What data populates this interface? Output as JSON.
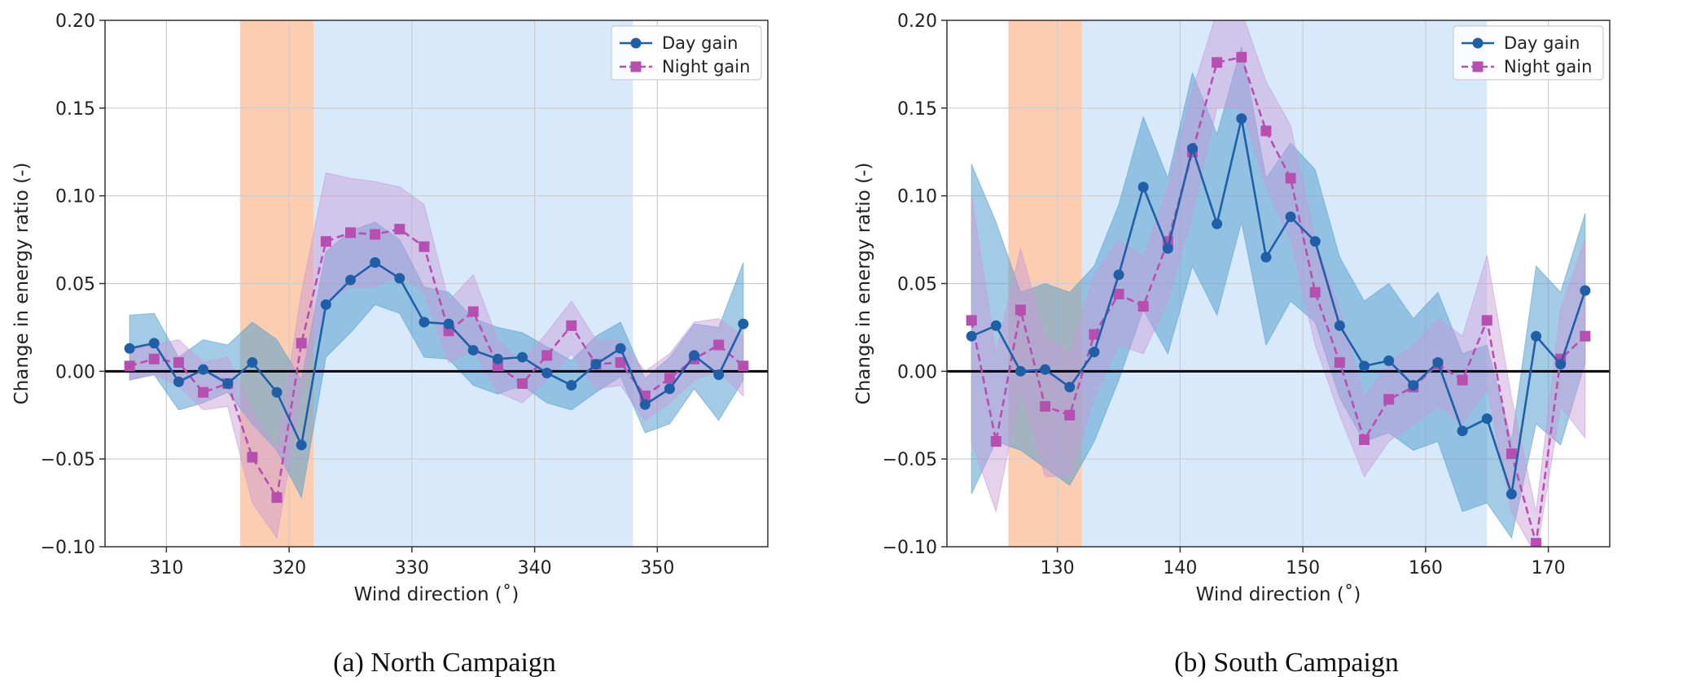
{
  "colors": {
    "day": "#1f5fa8",
    "night": "#b64fb0",
    "day_band": "#5aa0d0",
    "night_band": "#c79ad6",
    "shade_orange": "#fccdb0",
    "shade_blue": "#d7e9fb",
    "grid": "#cccccc",
    "zero_line": "#000000"
  },
  "chart_data": [
    {
      "type": "line",
      "caption": "(a) North Campaign",
      "xlabel": "Wind direction (˚)",
      "ylabel": "Change in energy ratio (-)",
      "xlim": [
        305,
        359
      ],
      "ylim": [
        -0.1,
        0.2
      ],
      "xticks": [
        310,
        320,
        330,
        340,
        350
      ],
      "xtick_labels": [
        "310",
        "320",
        "330",
        "340",
        "350"
      ],
      "yticks": [
        -0.1,
        -0.05,
        0.0,
        0.05,
        0.1,
        0.15,
        0.2
      ],
      "ytick_labels": [
        "−0.10",
        "−0.05",
        "0.00",
        "0.05",
        "0.10",
        "0.15",
        "0.20"
      ],
      "shaded_regions": [
        {
          "from": 316,
          "to": 322,
          "color": "shade_orange"
        },
        {
          "from": 322,
          "to": 348,
          "color": "shade_blue"
        }
      ],
      "legend": [
        "Day gain",
        "Night gain"
      ],
      "x": [
        307,
        309,
        311,
        313,
        315,
        317,
        319,
        321,
        323,
        325,
        327,
        329,
        331,
        333,
        335,
        337,
        339,
        341,
        343,
        345,
        347,
        349,
        351,
        353,
        355,
        357
      ],
      "series": [
        {
          "name": "Day gain",
          "marker": "circle",
          "values": [
            0.013,
            0.016,
            -0.006,
            0.001,
            -0.007,
            0.005,
            -0.012,
            -0.042,
            0.038,
            0.052,
            0.062,
            0.053,
            0.028,
            0.027,
            0.012,
            0.007,
            0.008,
            -0.001,
            -0.008,
            0.004,
            0.013,
            -0.019,
            -0.01,
            0.009,
            -0.002,
            0.027
          ],
          "lower": [
            -0.005,
            -0.002,
            -0.022,
            -0.018,
            -0.012,
            -0.03,
            -0.045,
            -0.072,
            0.008,
            0.022,
            0.038,
            0.033,
            0.008,
            0.007,
            -0.008,
            -0.013,
            -0.008,
            -0.018,
            -0.022,
            -0.012,
            -0.003,
            -0.035,
            -0.03,
            -0.01,
            -0.028,
            -0.005
          ],
          "upper": [
            0.032,
            0.033,
            0.008,
            0.018,
            0.015,
            0.028,
            0.018,
            -0.005,
            0.068,
            0.08,
            0.085,
            0.075,
            0.048,
            0.045,
            0.03,
            0.025,
            0.022,
            0.014,
            0.006,
            0.02,
            0.028,
            -0.004,
            0.008,
            0.027,
            0.025,
            0.062
          ]
        },
        {
          "name": "Night gain",
          "marker": "square",
          "values": [
            0.003,
            0.007,
            0.005,
            -0.012,
            -0.007,
            -0.049,
            -0.072,
            0.016,
            0.074,
            0.079,
            0.078,
            0.081,
            0.071,
            0.023,
            0.034,
            0.003,
            -0.007,
            0.009,
            0.026,
            0.004,
            0.005,
            -0.014,
            -0.004,
            0.007,
            0.015,
            0.003
          ],
          "lower": [
            -0.005,
            -0.002,
            -0.008,
            -0.022,
            -0.02,
            -0.075,
            -0.095,
            -0.012,
            0.04,
            0.048,
            0.048,
            0.055,
            0.045,
            0.005,
            0.012,
            -0.012,
            -0.018,
            -0.005,
            0.01,
            -0.01,
            -0.008,
            -0.028,
            -0.018,
            -0.005,
            0.0,
            -0.014
          ],
          "upper": [
            0.012,
            0.015,
            0.018,
            0.005,
            0.008,
            -0.022,
            -0.045,
            0.045,
            0.113,
            0.11,
            0.108,
            0.105,
            0.095,
            0.04,
            0.055,
            0.018,
            0.005,
            0.022,
            0.04,
            0.018,
            0.018,
            0.0,
            0.01,
            0.028,
            0.03,
            0.02
          ]
        }
      ]
    },
    {
      "type": "line",
      "caption": "(b) South Campaign",
      "xlabel": "Wind direction (˚)",
      "ylabel": "Change in energy ratio (-)",
      "xlim": [
        121,
        175
      ],
      "ylim": [
        -0.1,
        0.2
      ],
      "xticks": [
        130,
        140,
        150,
        160,
        170
      ],
      "xtick_labels": [
        "130",
        "140",
        "150",
        "160",
        "170"
      ],
      "yticks": [
        -0.1,
        -0.05,
        0.0,
        0.05,
        0.1,
        0.15,
        0.2
      ],
      "ytick_labels": [
        "−0.10",
        "−0.05",
        "0.00",
        "0.05",
        "0.10",
        "0.15",
        "0.20"
      ],
      "shaded_regions": [
        {
          "from": 126,
          "to": 132,
          "color": "shade_orange"
        },
        {
          "from": 132,
          "to": 165,
          "color": "shade_blue"
        }
      ],
      "legend": [
        "Day gain",
        "Night gain"
      ],
      "x": [
        123,
        125,
        127,
        129,
        131,
        133,
        135,
        137,
        139,
        141,
        143,
        145,
        147,
        149,
        151,
        153,
        155,
        157,
        159,
        161,
        163,
        165,
        167,
        169,
        171,
        173
      ],
      "series": [
        {
          "name": "Day gain",
          "marker": "circle",
          "values": [
            0.02,
            0.026,
            0.0,
            0.001,
            -0.009,
            0.011,
            0.055,
            0.105,
            0.07,
            0.127,
            0.084,
            0.144,
            0.065,
            0.088,
            0.074,
            0.026,
            0.003,
            0.006,
            -0.008,
            0.005,
            -0.034,
            -0.027,
            -0.07,
            0.02,
            0.004,
            0.046
          ],
          "lower": [
            -0.07,
            -0.04,
            -0.045,
            -0.055,
            -0.065,
            -0.04,
            -0.005,
            0.035,
            0.01,
            0.06,
            0.032,
            0.085,
            0.015,
            0.04,
            0.028,
            -0.015,
            -0.04,
            -0.035,
            -0.045,
            -0.04,
            -0.08,
            -0.075,
            -0.095,
            -0.03,
            -0.042,
            0.005
          ],
          "upper": [
            0.118,
            0.085,
            0.045,
            0.05,
            0.045,
            0.06,
            0.095,
            0.145,
            0.11,
            0.17,
            0.135,
            0.185,
            0.11,
            0.13,
            0.115,
            0.065,
            0.04,
            0.05,
            0.03,
            0.045,
            0.01,
            0.015,
            -0.04,
            0.06,
            0.045,
            0.09
          ]
        },
        {
          "name": "Night gain",
          "marker": "square",
          "values": [
            0.029,
            -0.04,
            0.035,
            -0.02,
            -0.025,
            0.021,
            0.044,
            0.037,
            0.074,
            0.125,
            0.176,
            0.179,
            0.137,
            0.11,
            0.045,
            0.005,
            -0.039,
            -0.016,
            -0.009,
            0.004,
            -0.005,
            0.029,
            -0.047,
            -0.098,
            0.007,
            0.02
          ],
          "lower": [
            -0.04,
            -0.08,
            -0.01,
            -0.06,
            -0.06,
            -0.015,
            0.015,
            0.01,
            0.04,
            0.09,
            0.15,
            0.15,
            0.105,
            0.075,
            0.015,
            -0.025,
            -0.06,
            -0.04,
            -0.03,
            -0.02,
            -0.03,
            -0.01,
            -0.08,
            -0.105,
            -0.02,
            -0.038
          ],
          "upper": [
            0.1,
            0.01,
            0.07,
            0.02,
            0.01,
            0.055,
            0.075,
            0.065,
            0.105,
            0.16,
            0.205,
            0.205,
            0.165,
            0.14,
            0.075,
            0.035,
            -0.015,
            0.005,
            0.015,
            0.03,
            0.02,
            0.066,
            -0.015,
            -0.08,
            0.035,
            0.075
          ]
        }
      ]
    }
  ]
}
